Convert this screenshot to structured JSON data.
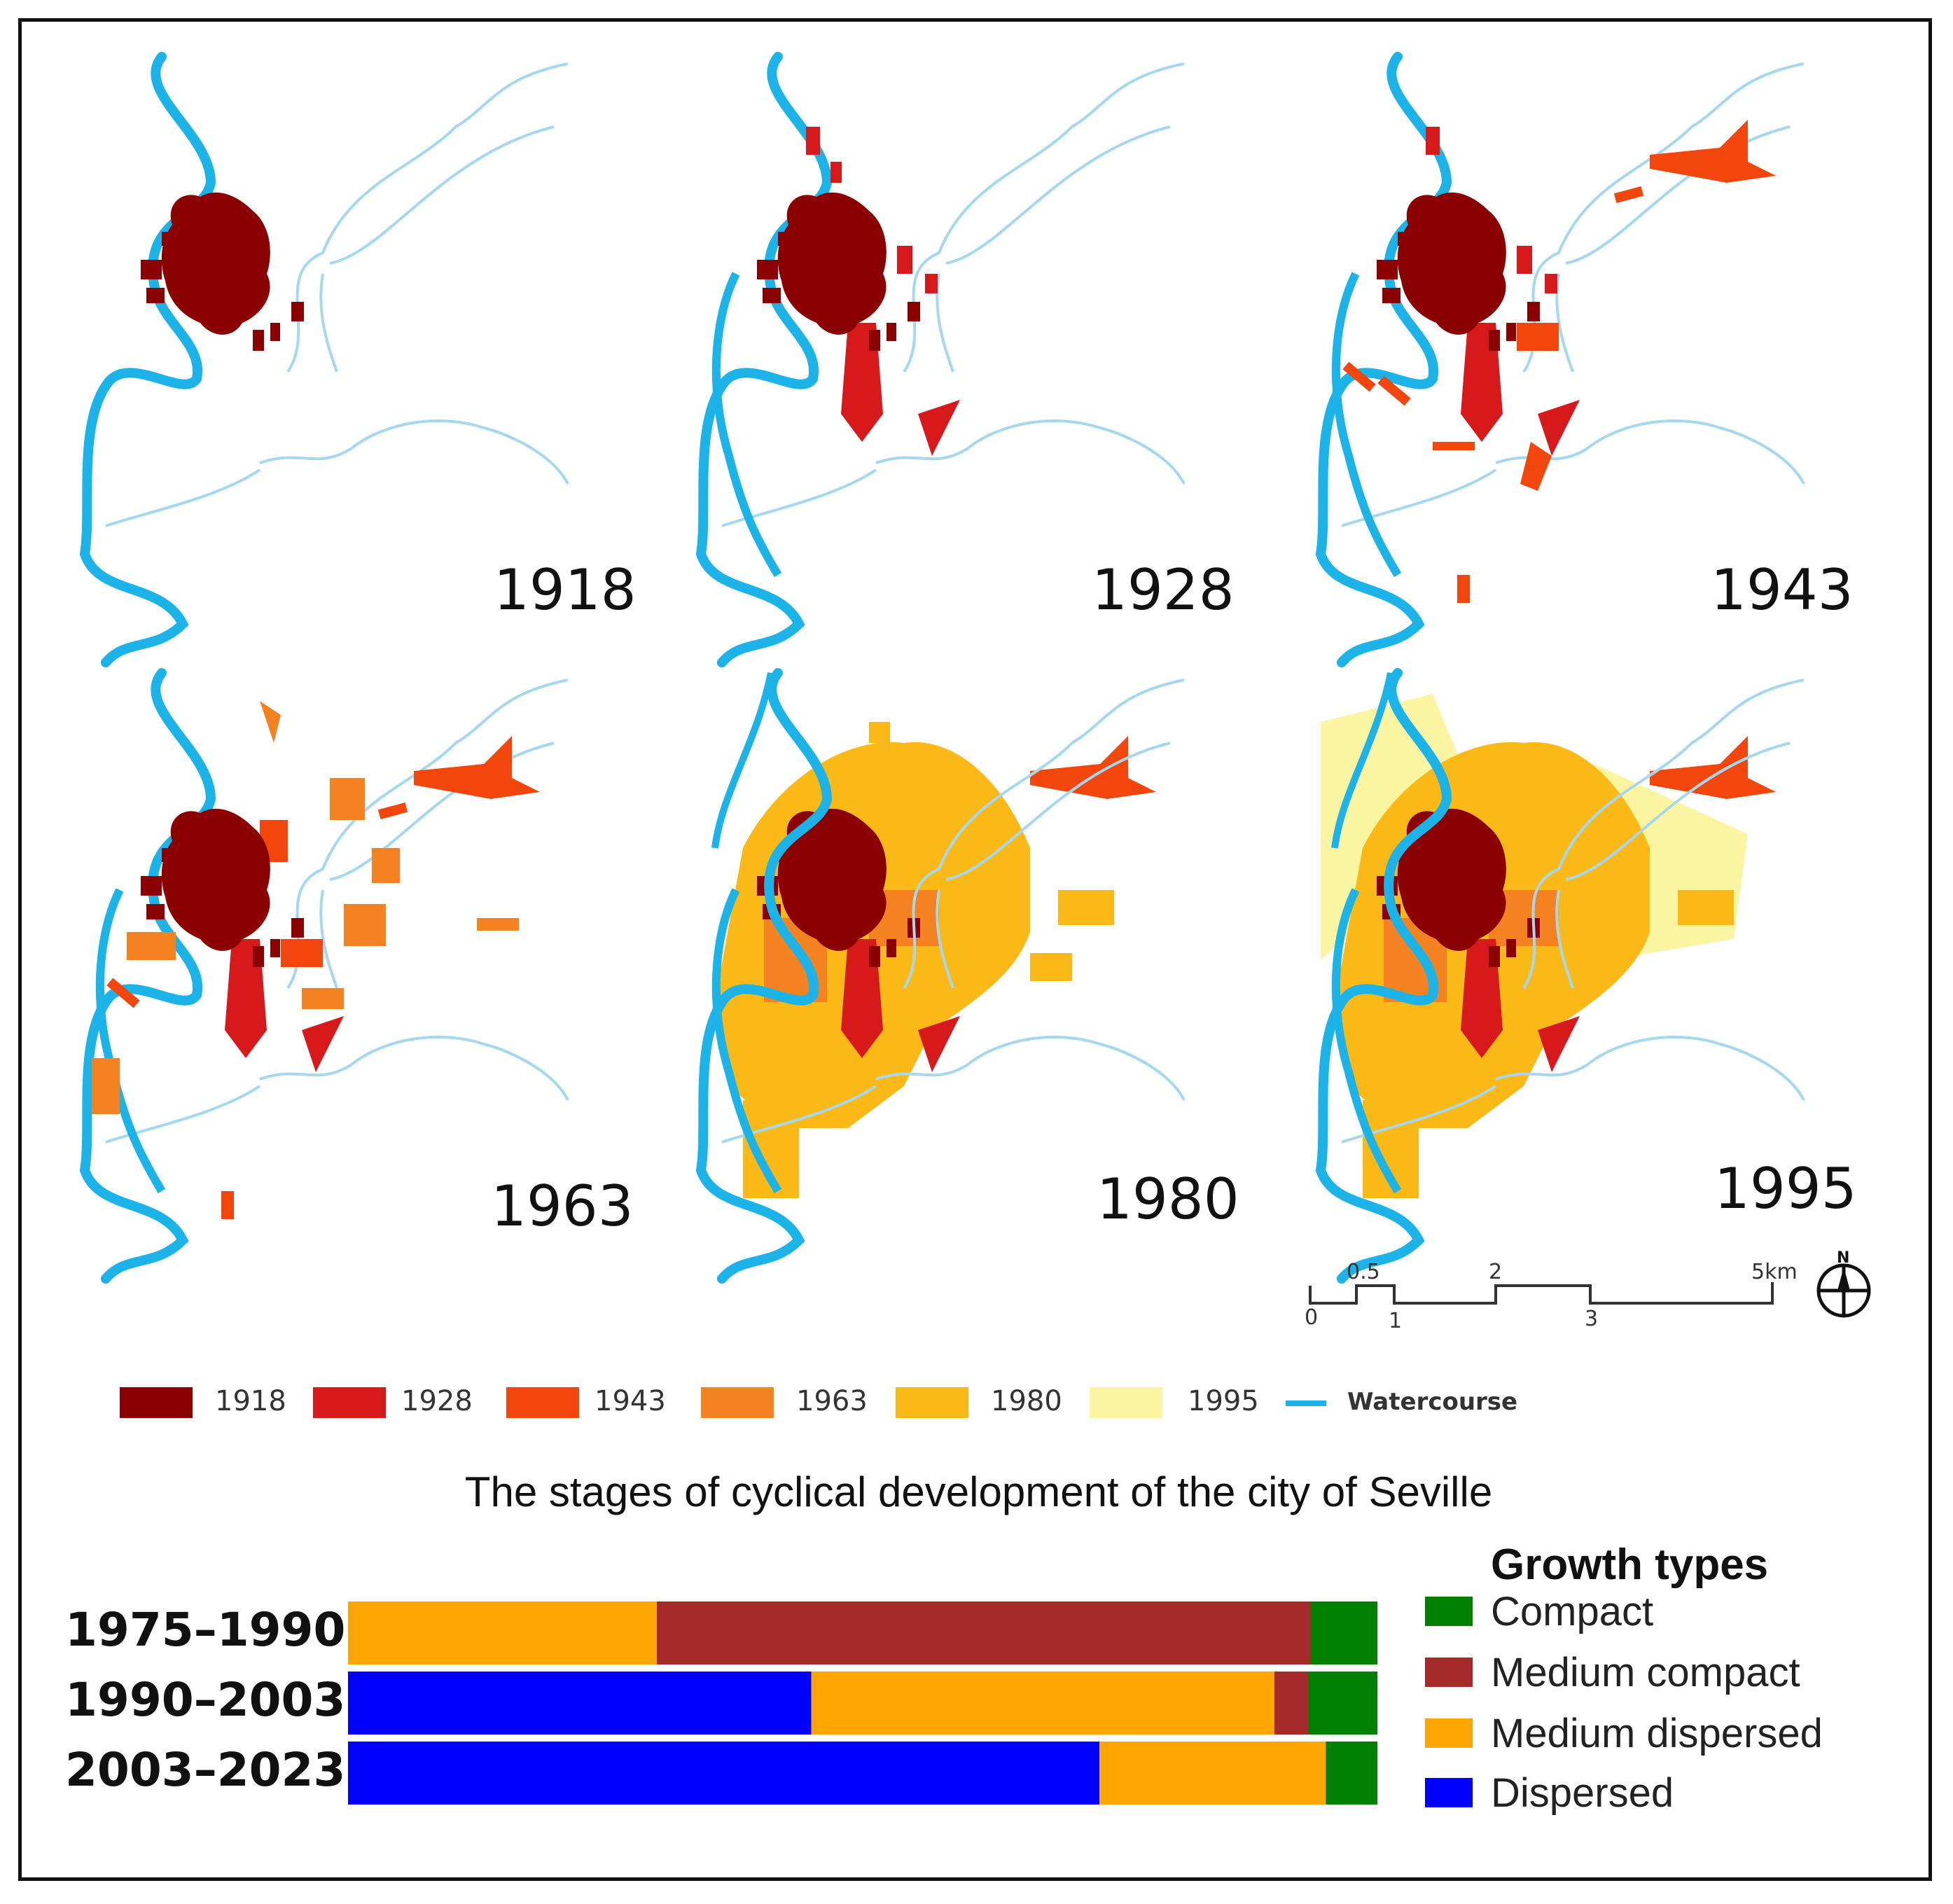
{
  "maps": {
    "panels": [
      {
        "year": "1918"
      },
      {
        "year": "1928"
      },
      {
        "year": "1943"
      },
      {
        "year": "1963"
      },
      {
        "year": "1980"
      },
      {
        "year": "1995"
      }
    ],
    "scale_bar": {
      "labels_top": [
        "0.5",
        "2",
        "5km"
      ],
      "labels_bottom": [
        "0",
        "1",
        "3"
      ],
      "north": "N"
    },
    "legend": [
      {
        "label": "1918",
        "color": "#8b0000"
      },
      {
        "label": "1928",
        "color": "#d7191c"
      },
      {
        "label": "1943",
        "color": "#f2460d"
      },
      {
        "label": "1963",
        "color": "#f58220"
      },
      {
        "label": "1980",
        "color": "#fbb917"
      },
      {
        "label": "1995",
        "color": "#fbf5a2"
      },
      {
        "label": "Watercourse",
        "color": "#1cb3e8"
      }
    ],
    "subtitle": "The stages of cyclical development of the city of Seville"
  },
  "chart_data": {
    "type": "bar",
    "orientation": "horizontal",
    "stacked": "100%",
    "categories": [
      "1975–1990",
      "1990–2003",
      "2003–2023"
    ],
    "series": [
      {
        "name": "Dispersed",
        "color": "#0000ff",
        "values": [
          0,
          45,
          73
        ]
      },
      {
        "name": "Medium dispersed",
        "color": "#ffa500",
        "values": [
          30,
          45,
          22
        ]
      },
      {
        "name": "Medium compact",
        "color": "#a52a2a",
        "values": [
          63.5,
          3.3,
          0
        ]
      },
      {
        "name": "Compact",
        "color": "#008000",
        "values": [
          6.5,
          6.7,
          5
        ]
      }
    ],
    "legend_title": "Growth types",
    "legend_order": [
      "Compact",
      "Medium compact",
      "Medium dispersed",
      "Dispersed"
    ],
    "legend_position": "right",
    "grid": false
  }
}
